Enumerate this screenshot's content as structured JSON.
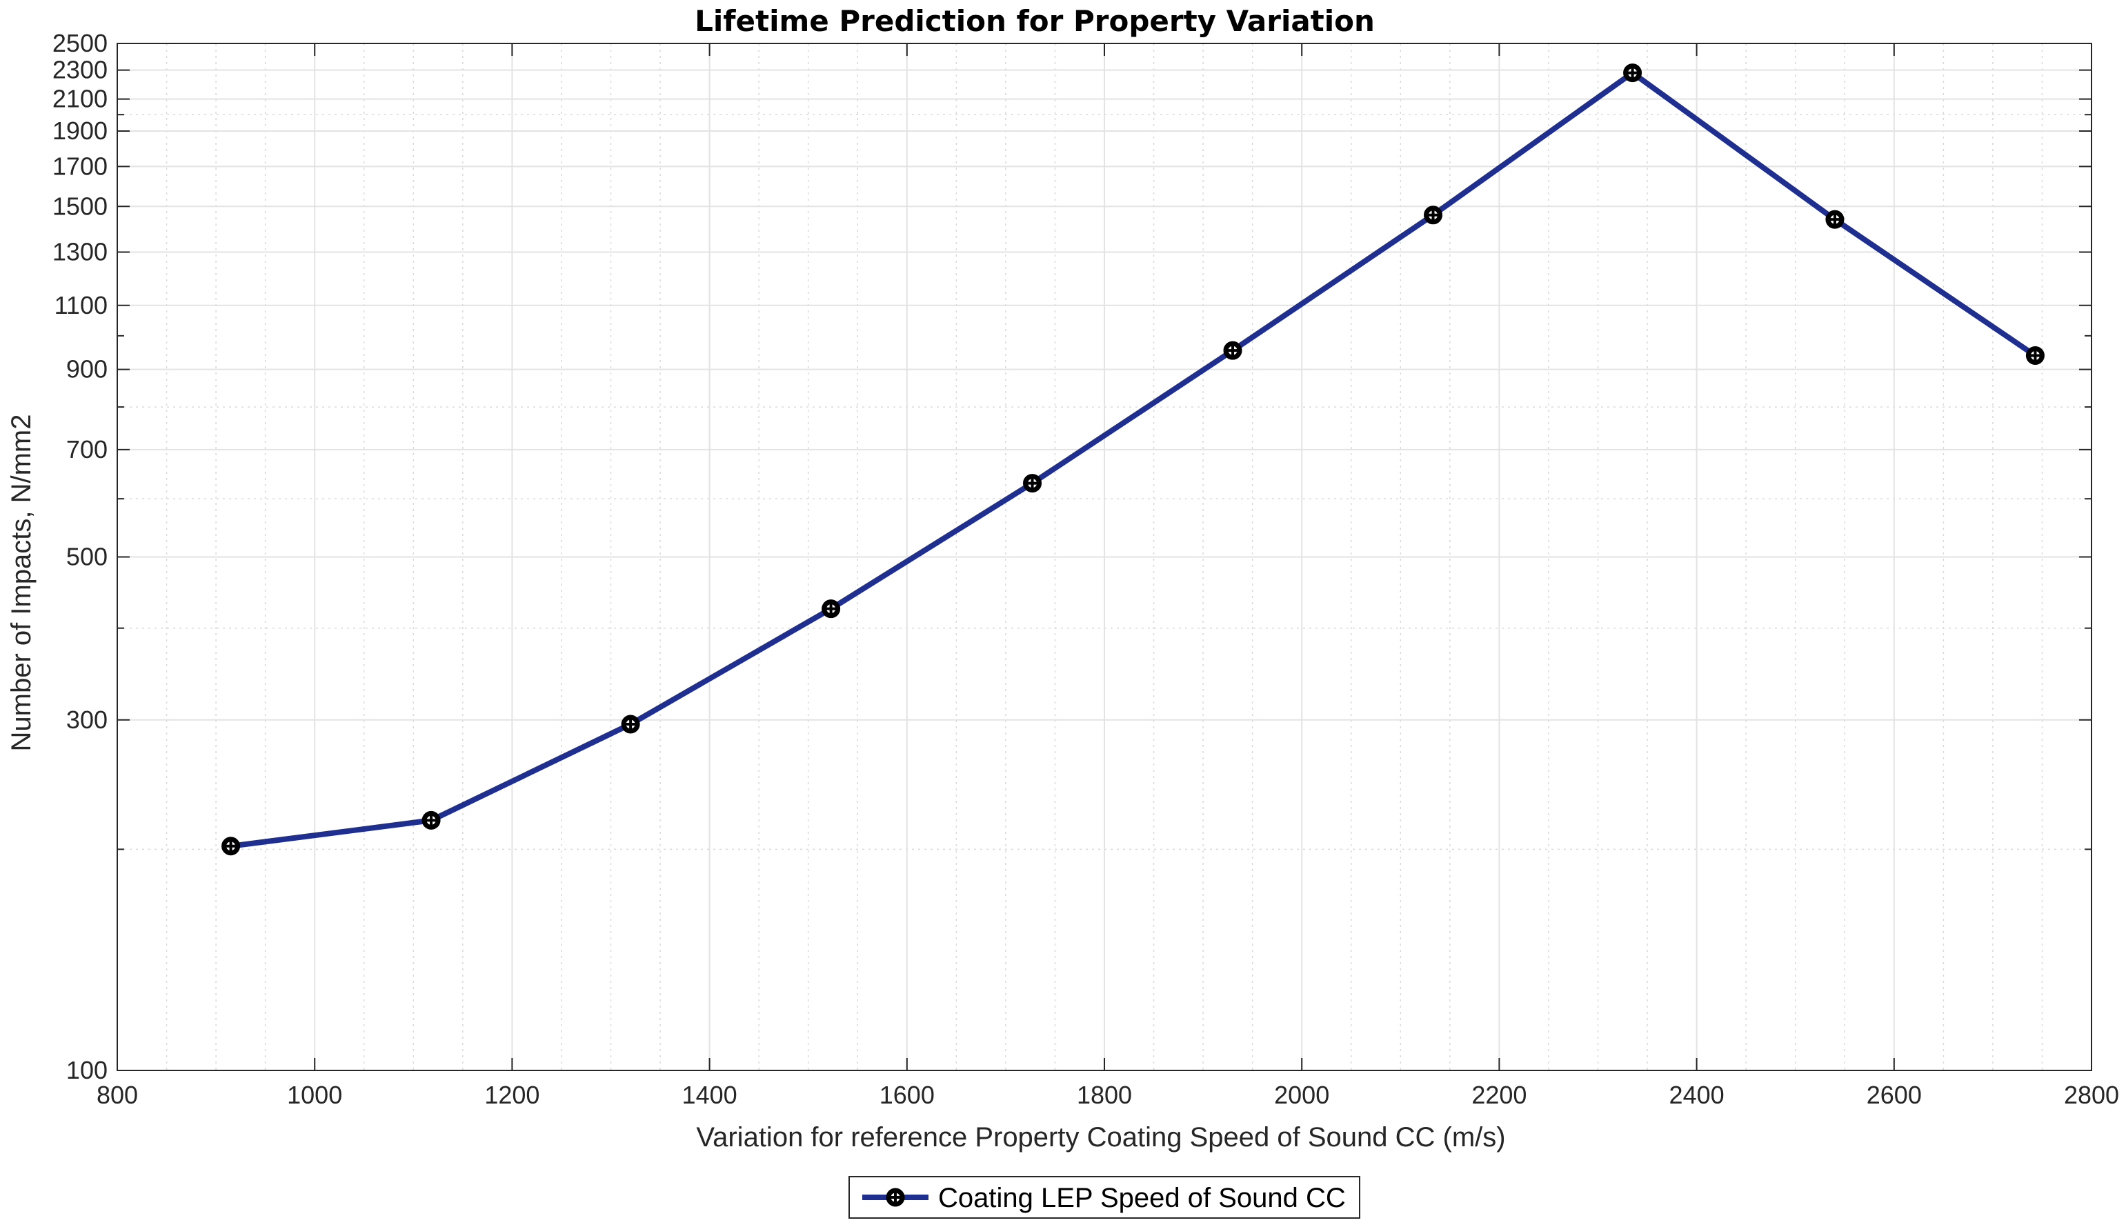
{
  "chart_data": {
    "type": "line",
    "title": "Lifetime Prediction for Property Variation",
    "xlabel": "Variation for reference Property Coating Speed of Sound CC (m/s)",
    "ylabel": "Number of Impacts, N/mm2",
    "xlim": [
      800,
      2800
    ],
    "ylim": [
      100,
      2500
    ],
    "yscale": "log",
    "grid": true,
    "minor_grid": true,
    "legend_position": "bottom-center",
    "x_ticks": [
      800,
      1000,
      1200,
      1400,
      1600,
      1800,
      2000,
      2200,
      2400,
      2600,
      2800
    ],
    "y_ticks": [
      100,
      300,
      500,
      700,
      900,
      1100,
      1300,
      1500,
      1700,
      1900,
      2100,
      2300,
      2500
    ],
    "series": [
      {
        "name": "Coating LEP Speed of Sound CC",
        "color": "#1f2f8f",
        "marker": "circle-cross",
        "x": [
          915,
          1118,
          1320,
          1523,
          1727,
          1930,
          2133,
          2335,
          2540,
          2743
        ],
        "y": [
          202,
          219,
          296,
          425,
          630,
          955,
          1460,
          2280,
          1440,
          940
        ]
      }
    ]
  }
}
